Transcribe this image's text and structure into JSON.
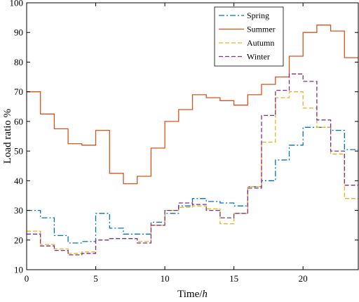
{
  "chart_data": {
    "type": "line",
    "step": true,
    "xlabel": "Time/",
    "xlabel_italic": "h",
    "ylabel": "Load ratio %",
    "xlim": [
      0,
      24
    ],
    "ylim": [
      10,
      100
    ],
    "xticks": [
      0,
      5,
      10,
      15,
      20
    ],
    "yticks": [
      10,
      20,
      30,
      40,
      50,
      60,
      70,
      80,
      90,
      100
    ],
    "grid": false,
    "legend_position": "top-right",
    "series": [
      {
        "name": "Spring",
        "color": "#0072BD",
        "dash": "dashdot",
        "values": [
          30,
          27.5,
          21.5,
          19,
          19.5,
          29,
          24,
          22,
          22,
          26,
          29,
          31.5,
          34,
          33,
          32.5,
          31.5,
          38,
          40,
          47,
          52,
          58,
          58,
          57,
          50.5
        ]
      },
      {
        "name": "Summer",
        "color": "#D95319",
        "dash": "solid",
        "values": [
          70,
          62.5,
          57.5,
          52.5,
          52,
          57,
          42.5,
          39,
          41.5,
          51,
          60,
          64,
          69,
          68,
          67,
          65.5,
          69,
          72.5,
          75,
          82,
          90,
          92.5,
          90.5,
          81.5
        ]
      },
      {
        "name": "Autumn",
        "color": "#EDB120",
        "dash": "dashed",
        "values": [
          23,
          18.5,
          17,
          15.5,
          16,
          20,
          20.5,
          20.5,
          19.5,
          25,
          30,
          31,
          31.5,
          30.5,
          25.5,
          29,
          38,
          53,
          68,
          70,
          64.5,
          58,
          49,
          34
        ]
      },
      {
        "name": "Winter",
        "color": "#7E2F8E",
        "dash": "dashed",
        "values": [
          22,
          18,
          16.5,
          15,
          15.5,
          20,
          20.5,
          20.5,
          19,
          25,
          30,
          32.5,
          32,
          30,
          27.5,
          29,
          37.5,
          62,
          70.5,
          76,
          73.5,
          60.5,
          50,
          38.5
        ]
      }
    ]
  }
}
